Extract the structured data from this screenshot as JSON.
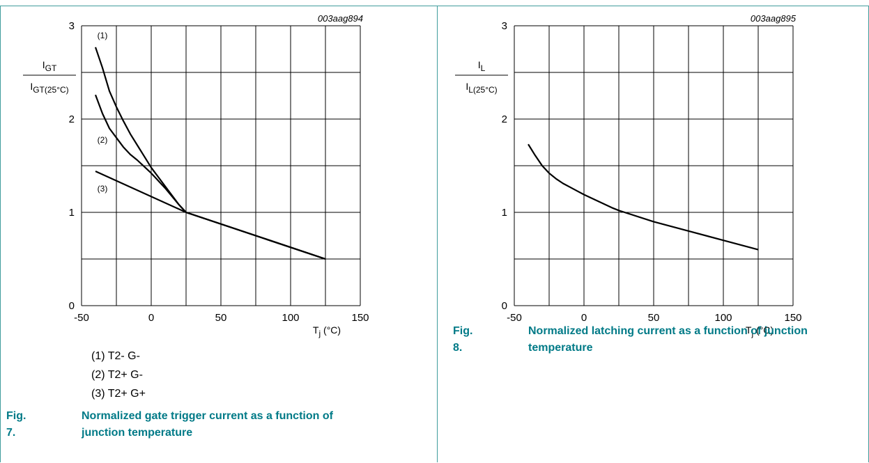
{
  "chart_data": [
    {
      "type": "line",
      "id": "003aag894",
      "ylabel_num": "I",
      "ylabel_num_sub": "GT",
      "ylabel_den": "I",
      "ylabel_den_sub": "GT(25°C)",
      "xlabel_main": "T",
      "xlabel_sub": "j",
      "xlabel_unit": " (°C)",
      "xlim": [
        -50,
        150
      ],
      "ylim": [
        0,
        3
      ],
      "xticks": [
        -50,
        0,
        50,
        100,
        150
      ],
      "yticks": [
        0,
        1,
        2,
        3
      ],
      "grid": true,
      "series": [
        {
          "name": "(1)",
          "x": [
            -40,
            -35,
            -30,
            -25,
            -20,
            -15,
            -10,
            -5,
            0,
            10,
            20,
            25,
            125
          ],
          "y": [
            2.77,
            2.55,
            2.3,
            2.13,
            1.98,
            1.84,
            1.72,
            1.6,
            1.48,
            1.28,
            1.08,
            1.0,
            0.5
          ]
        },
        {
          "name": "(2)",
          "x": [
            -40,
            -35,
            -30,
            -25,
            -20,
            -15,
            -10,
            -5,
            0,
            10,
            20,
            25,
            125
          ],
          "y": [
            2.26,
            2.06,
            1.9,
            1.8,
            1.7,
            1.62,
            1.56,
            1.49,
            1.42,
            1.26,
            1.08,
            1.0,
            0.5
          ]
        },
        {
          "name": "(3)",
          "x": [
            -40,
            25,
            125
          ],
          "y": [
            1.44,
            1.0,
            0.5
          ]
        }
      ],
      "legend": [
        "(1) T2- G-",
        "(2) T2+ G-",
        "(3) T2+ G+"
      ],
      "caption_number": "Fig. 7.",
      "caption_title": "Normalized gate trigger current as a function of junction temperature"
    },
    {
      "type": "line",
      "id": "003aag895",
      "ylabel_num": "I",
      "ylabel_num_sub": "L",
      "ylabel_den": "I",
      "ylabel_den_sub": "L(25°C)",
      "xlabel_main": "T",
      "xlabel_sub": "j",
      "xlabel_unit": " (°C)",
      "xlim": [
        -50,
        150
      ],
      "ylim": [
        0,
        3
      ],
      "xticks": [
        -50,
        0,
        50,
        100,
        150
      ],
      "yticks": [
        0,
        1,
        2,
        3
      ],
      "grid": true,
      "series": [
        {
          "x": [
            -40,
            -35,
            -30,
            -25,
            -20,
            -15,
            -10,
            -5,
            0,
            10,
            20,
            25,
            50,
            75,
            100,
            125
          ],
          "y": [
            1.73,
            1.61,
            1.5,
            1.42,
            1.36,
            1.31,
            1.27,
            1.23,
            1.19,
            1.12,
            1.05,
            1.02,
            0.9,
            0.8,
            0.7,
            0.6
          ]
        }
      ],
      "caption_number": "Fig. 8.",
      "caption_title": "Normalized latching current as a function of junction temperature"
    }
  ]
}
